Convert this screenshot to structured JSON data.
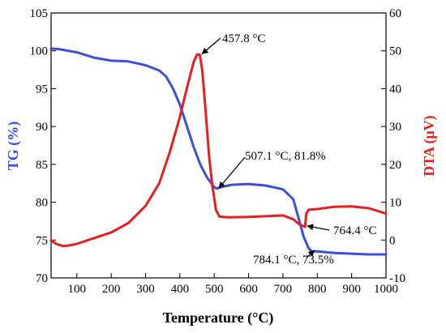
{
  "chart_data": {
    "type": "line",
    "xlabel": "Temperature (°C)",
    "ylabel_left": "TG (%)",
    "ylabel_right": "DTA (μV)",
    "xlim": [
      25,
      1000
    ],
    "ylim_left": [
      70,
      105
    ],
    "ylim_right": [
      -10,
      60
    ],
    "x_ticks": [
      100,
      200,
      300,
      400,
      500,
      600,
      700,
      800,
      900,
      1000
    ],
    "y_left_ticks": [
      70,
      75,
      80,
      85,
      90,
      95,
      100,
      105
    ],
    "y_right_ticks": [
      -10,
      0,
      10,
      20,
      30,
      40,
      50,
      60
    ],
    "grid": false,
    "colors": {
      "tg": "#3a4fe0",
      "dta": "#e81e1e",
      "left_axis_label": "#3a4fe0",
      "right_axis_label": "#e81e1e"
    },
    "series": [
      {
        "axis": "left",
        "color": "#3a4fe0",
        "points": [
          [
            25,
            100.3
          ],
          [
            50,
            100.2
          ],
          [
            100,
            99.8
          ],
          [
            150,
            99.1
          ],
          [
            200,
            98.7
          ],
          [
            250,
            98.6
          ],
          [
            300,
            98.1
          ],
          [
            340,
            97.4
          ],
          [
            360,
            96.6
          ],
          [
            380,
            95.0
          ],
          [
            400,
            92.9
          ],
          [
            420,
            90.1
          ],
          [
            440,
            87.3
          ],
          [
            460,
            84.9
          ],
          [
            480,
            83.2
          ],
          [
            500,
            82.0
          ],
          [
            507.1,
            81.8
          ],
          [
            520,
            82.0
          ],
          [
            550,
            82.3
          ],
          [
            600,
            82.4
          ],
          [
            650,
            82.2
          ],
          [
            700,
            81.7
          ],
          [
            730,
            80.4
          ],
          [
            745,
            78.0
          ],
          [
            760,
            75.5
          ],
          [
            775,
            73.9
          ],
          [
            784.1,
            73.5
          ],
          [
            800,
            73.5
          ],
          [
            850,
            73.3
          ],
          [
            900,
            73.2
          ],
          [
            950,
            73.1
          ],
          [
            1000,
            73.1
          ]
        ]
      },
      {
        "axis": "right",
        "color": "#e81e1e",
        "points": [
          [
            25,
            -0.1
          ],
          [
            40,
            -1.0
          ],
          [
            60,
            -1.6
          ],
          [
            80,
            -1.4
          ],
          [
            100,
            -1.0
          ],
          [
            150,
            0.5
          ],
          [
            200,
            2.0
          ],
          [
            250,
            4.5
          ],
          [
            300,
            9.0
          ],
          [
            340,
            15.0
          ],
          [
            370,
            23.0
          ],
          [
            400,
            32.5
          ],
          [
            420,
            40.0
          ],
          [
            440,
            47.0
          ],
          [
            450,
            49.0
          ],
          [
            457.8,
            49.0
          ],
          [
            465,
            45.0
          ],
          [
            475,
            34.0
          ],
          [
            485,
            22.0
          ],
          [
            495,
            14.0
          ],
          [
            505,
            8.0
          ],
          [
            515,
            6.2
          ],
          [
            540,
            6.0
          ],
          [
            600,
            6.1
          ],
          [
            650,
            6.3
          ],
          [
            700,
            6.5
          ],
          [
            730,
            5.5
          ],
          [
            750,
            4.0
          ],
          [
            764.4,
            3.5
          ],
          [
            768,
            7.0
          ],
          [
            775,
            8.0
          ],
          [
            800,
            8.2
          ],
          [
            850,
            8.8
          ],
          [
            900,
            8.9
          ],
          [
            950,
            8.4
          ],
          [
            1000,
            7.0
          ]
        ]
      }
    ],
    "annotations": [
      {
        "text": "457.8 °C"
      },
      {
        "text": "507.1 °C, 81.8%"
      },
      {
        "text": "764.4 °C"
      },
      {
        "text": "784.1 °C, 73.5%"
      }
    ]
  }
}
